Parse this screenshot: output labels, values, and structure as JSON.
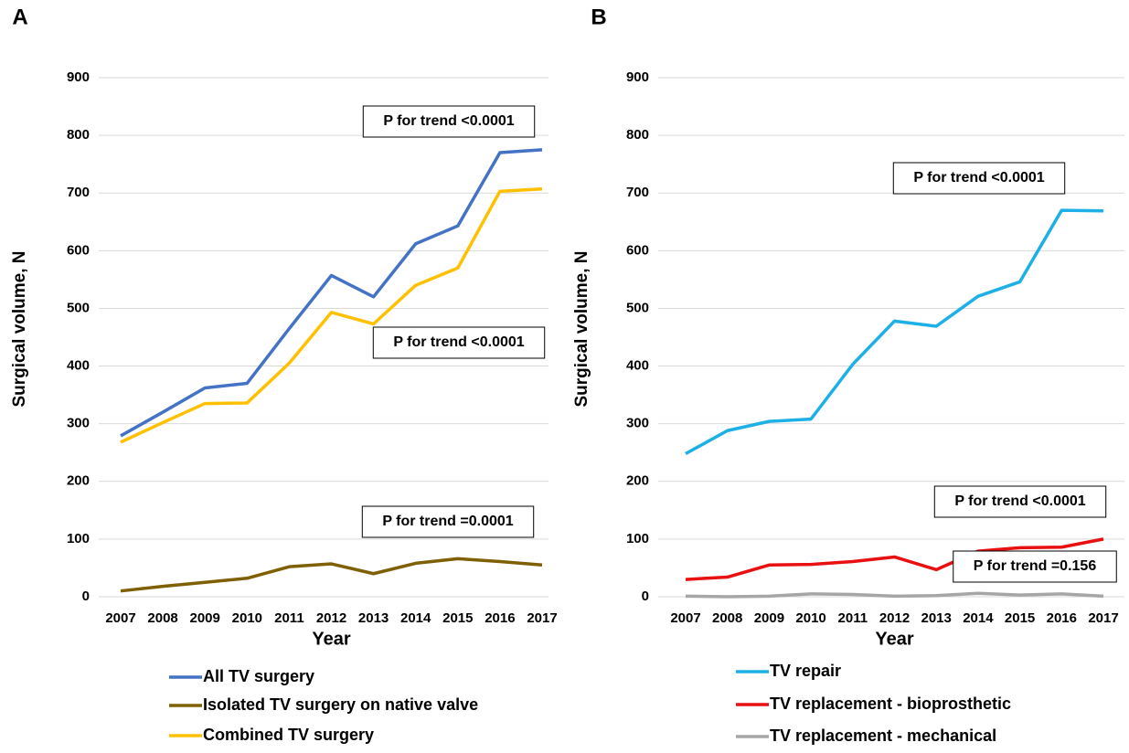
{
  "chart_data": [
    {
      "type": "line",
      "panel": "A",
      "ylabel": "Surgical volume, N",
      "xlabel": "Year",
      "categories": [
        "2007",
        "2008",
        "2009",
        "2010",
        "2011",
        "2012",
        "2013",
        "2014",
        "2015",
        "2016",
        "2017"
      ],
      "series": [
        {
          "name": "All TV surgery",
          "color": "#4472c4",
          "values": [
            279,
            320,
            362,
            370,
            465,
            557,
            520,
            612,
            643,
            770,
            775
          ]
        },
        {
          "name": "Isolated TV surgery on native valve",
          "color": "#7f6000",
          "values": [
            10,
            18,
            25,
            32,
            52,
            57,
            40,
            58,
            66,
            61,
            55
          ]
        },
        {
          "name": " Combined TV surgery",
          "color": "#ffc000",
          "values": [
            268,
            302,
            335,
            336,
            405,
            493,
            473,
            540,
            570,
            703,
            707
          ]
        }
      ],
      "annotations": [
        "P for trend <0.0001",
        "P for trend <0.0001",
        "P for trend =0.0001"
      ],
      "ylim": [
        0,
        900
      ],
      "yticks": [
        0,
        100,
        200,
        300,
        400,
        500,
        600,
        700,
        800,
        900
      ],
      "grid": true
    },
    {
      "type": "line",
      "panel": "B",
      "ylabel": "Surgical volume, N",
      "xlabel": "Year",
      "categories": [
        "2007",
        "2008",
        "2009",
        "2010",
        "2011",
        "2012",
        "2013",
        "2014",
        "2015",
        "2016",
        "2017"
      ],
      "series": [
        {
          "name": "TV repair",
          "color": "#1cb0e6",
          "values": [
            248,
            288,
            304,
            308,
            403,
            478,
            469,
            521,
            546,
            670,
            669
          ]
        },
        {
          "name": "TV replacement - bioprosthetic",
          "color": "#e81010",
          "values": [
            30,
            34,
            55,
            56,
            61,
            69,
            47,
            79,
            85,
            86,
            100
          ]
        },
        {
          "name": "TV replacement - mechanical",
          "color": "#a6a6a6",
          "values": [
            1,
            0,
            1,
            5,
            4,
            1,
            2,
            6,
            3,
            5,
            1
          ]
        }
      ],
      "annotations": [
        "P for trend <0.0001",
        "P for trend <0.0001",
        "P for trend =0.156"
      ],
      "ylim": [
        0,
        900
      ],
      "yticks": [
        0,
        100,
        200,
        300,
        400,
        500,
        600,
        700,
        800,
        900
      ],
      "grid": true
    }
  ]
}
